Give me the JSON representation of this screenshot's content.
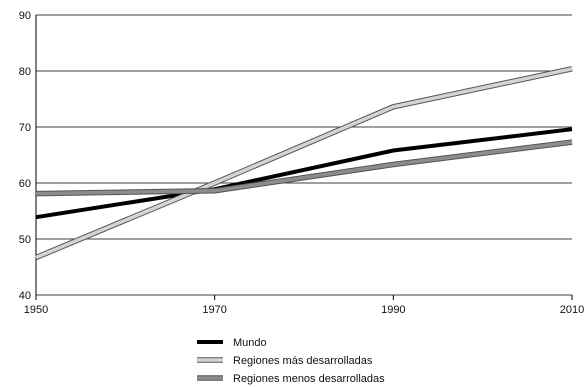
{
  "chart_data": {
    "type": "line",
    "x": [
      1950,
      1970,
      1990,
      2010
    ],
    "xticks": [
      1950,
      1970,
      1990,
      2010
    ],
    "xlim": [
      1950,
      2010
    ],
    "yticks": [
      40,
      50,
      60,
      70,
      80,
      90
    ],
    "ylim": [
      40,
      90
    ],
    "grid": "horizontal",
    "legend_position": "bottom-center",
    "series": [
      {
        "name": "Mundo",
        "values": [
          53.9,
          58.9,
          65.8,
          69.6
        ],
        "color": "#000000",
        "style": "solid"
      },
      {
        "name": "Regiones más desarrolladas",
        "values": [
          46.7,
          60.0,
          73.6,
          80.4
        ],
        "color": "#d4d4d4",
        "style": "outlined"
      },
      {
        "name": "Regiones menos desarrolladas",
        "values": [
          58.1,
          58.6,
          63.3,
          67.3
        ],
        "color": "#8c8c8c",
        "style": "outlined"
      }
    ]
  }
}
